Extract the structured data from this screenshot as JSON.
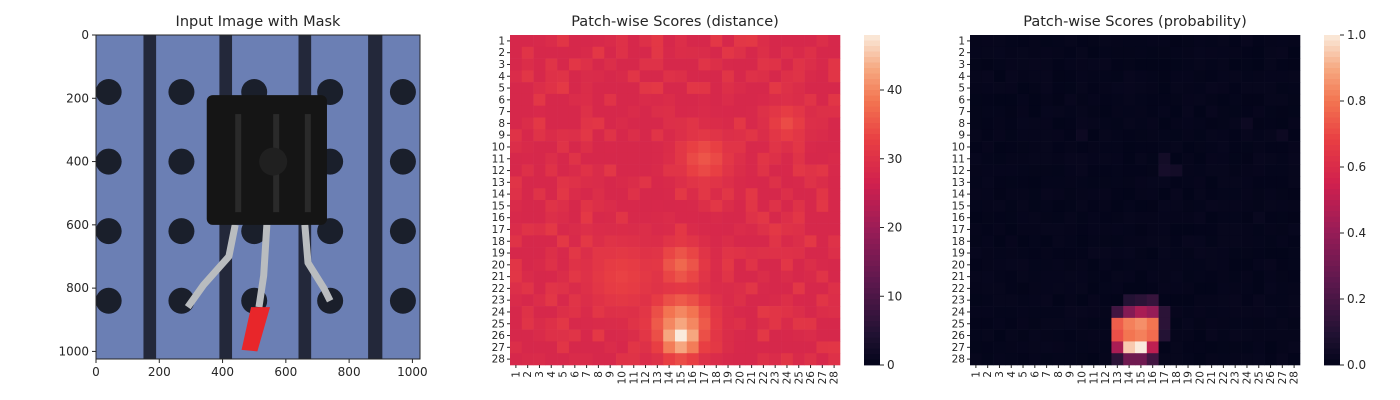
{
  "chart_data": [
    {
      "type": "image",
      "title": "Input Image with Mask",
      "xlim": [
        0,
        1024
      ],
      "ylim": [
        1024,
        0
      ],
      "xticks": [
        0,
        200,
        400,
        600,
        800,
        1000
      ],
      "yticks": [
        0,
        200,
        400,
        600,
        800,
        1000
      ],
      "content": "transistor on perforated board with red mask overlay on the middle lead",
      "colors": {
        "board": "#6b7fb4",
        "hole": "#1a1f2b",
        "stripe": "#23283a",
        "body": "#151515",
        "lead": "#b9bcbf",
        "mask": "#e8262a"
      }
    },
    {
      "type": "heatmap",
      "title": "Patch-wise Scores (distance)",
      "rows": 28,
      "cols": 28,
      "row_labels": [
        "1",
        "2",
        "3",
        "4",
        "5",
        "6",
        "7",
        "8",
        "9",
        "10",
        "11",
        "12",
        "13",
        "14",
        "15",
        "16",
        "17",
        "18",
        "19",
        "20",
        "21",
        "22",
        "23",
        "24",
        "25",
        "26",
        "27",
        "28"
      ],
      "col_labels": [
        "1",
        "2",
        "3",
        "4",
        "5",
        "6",
        "7",
        "8",
        "9",
        "10",
        "11",
        "12",
        "13",
        "14",
        "15",
        "16",
        "17",
        "18",
        "19",
        "20",
        "21",
        "22",
        "23",
        "24",
        "25",
        "26",
        "27",
        "28"
      ],
      "vmin": 0,
      "vmax": 48,
      "colorbar_ticks": [
        0,
        10,
        20,
        30,
        40
      ],
      "colormap": "rocket",
      "baseline": 28,
      "hotspots": [
        {
          "row": 26,
          "col": 15,
          "peak": 48,
          "sigma": 1.3
        },
        {
          "row": 25,
          "col": 15,
          "peak": 42,
          "sigma": 1.8
        },
        {
          "row": 20,
          "col": 15,
          "peak": 37,
          "sigma": 1.4
        },
        {
          "row": 11,
          "col": 17,
          "peak": 35,
          "sigma": 1.6
        },
        {
          "row": 21,
          "col": 10,
          "peak": 33,
          "sigma": 2.2
        },
        {
          "row": 8,
          "col": 24,
          "peak": 34,
          "sigma": 1.2
        }
      ]
    },
    {
      "type": "heatmap",
      "title": "Patch-wise Scores (probability)",
      "rows": 28,
      "cols": 28,
      "row_labels": [
        "1",
        "2",
        "3",
        "4",
        "5",
        "6",
        "7",
        "8",
        "9",
        "10",
        "11",
        "12",
        "13",
        "14",
        "15",
        "16",
        "17",
        "18",
        "19",
        "20",
        "21",
        "22",
        "23",
        "24",
        "25",
        "26",
        "27",
        "28"
      ],
      "col_labels": [
        "1",
        "2",
        "3",
        "4",
        "5",
        "6",
        "7",
        "8",
        "9",
        "10",
        "11",
        "12",
        "13",
        "14",
        "15",
        "16",
        "17",
        "18",
        "19",
        "20",
        "21",
        "22",
        "23",
        "24",
        "25",
        "26",
        "27",
        "28"
      ],
      "vmin": 0.0,
      "vmax": 1.0,
      "colorbar_ticks": [
        "0.0",
        "0.2",
        "0.4",
        "0.6",
        "0.8",
        "1.0"
      ],
      "colormap": "rocket",
      "cells": [
        {
          "row": 23,
          "col": 14,
          "value": 0.1
        },
        {
          "row": 23,
          "col": 15,
          "value": 0.12
        },
        {
          "row": 23,
          "col": 16,
          "value": 0.15
        },
        {
          "row": 24,
          "col": 13,
          "value": 0.18
        },
        {
          "row": 24,
          "col": 14,
          "value": 0.35
        },
        {
          "row": 24,
          "col": 15,
          "value": 0.45
        },
        {
          "row": 24,
          "col": 16,
          "value": 0.4
        },
        {
          "row": 24,
          "col": 17,
          "value": 0.12
        },
        {
          "row": 25,
          "col": 13,
          "value": 0.75
        },
        {
          "row": 25,
          "col": 14,
          "value": 0.82
        },
        {
          "row": 25,
          "col": 15,
          "value": 0.85
        },
        {
          "row": 25,
          "col": 16,
          "value": 0.8
        },
        {
          "row": 25,
          "col": 17,
          "value": 0.12
        },
        {
          "row": 26,
          "col": 13,
          "value": 0.72
        },
        {
          "row": 26,
          "col": 14,
          "value": 0.8
        },
        {
          "row": 26,
          "col": 15,
          "value": 0.82
        },
        {
          "row": 26,
          "col": 16,
          "value": 0.78
        },
        {
          "row": 26,
          "col": 17,
          "value": 0.1
        },
        {
          "row": 27,
          "col": 13,
          "value": 0.45
        },
        {
          "row": 27,
          "col": 14,
          "value": 0.95
        },
        {
          "row": 27,
          "col": 15,
          "value": 1.0
        },
        {
          "row": 27,
          "col": 16,
          "value": 0.5
        },
        {
          "row": 28,
          "col": 13,
          "value": 0.12
        },
        {
          "row": 28,
          "col": 14,
          "value": 0.3
        },
        {
          "row": 28,
          "col": 15,
          "value": 0.3
        },
        {
          "row": 28,
          "col": 16,
          "value": 0.18
        },
        {
          "row": 11,
          "col": 17,
          "value": 0.05
        },
        {
          "row": 12,
          "col": 17,
          "value": 0.06
        },
        {
          "row": 12,
          "col": 18,
          "value": 0.05
        },
        {
          "row": 9,
          "col": 10,
          "value": 0.03
        },
        {
          "row": 8,
          "col": 24,
          "value": 0.03
        },
        {
          "row": 9,
          "col": 27,
          "value": 0.03
        },
        {
          "row": 16,
          "col": 25,
          "value": 0.02
        }
      ]
    }
  ]
}
